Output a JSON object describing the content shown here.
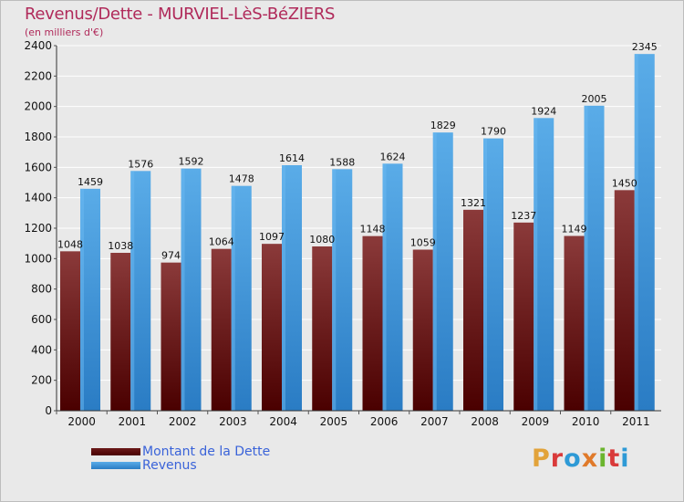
{
  "header": {
    "title": "Revenus/Dette - MURVIEL-LèS-BéZIERS",
    "subtitle": "(en milliers d'€)"
  },
  "legend": {
    "debt_label": "Montant de la Dette",
    "revenue_label": "Revenus"
  },
  "logo": {
    "text": "Proxiti",
    "letter_colors": [
      "#e2a33a",
      "#d93a3a",
      "#2e9ad6",
      "#e07a2a",
      "#6bb52e",
      "#d93a3a",
      "#2e9ad6"
    ]
  },
  "colors": {
    "debt_top": "#8b3a3a",
    "debt_bottom": "#4a0000",
    "revenue_top": "#5aace8",
    "revenue_bottom": "#2a7cc4",
    "title": "#b02a5a",
    "legend_text": "#3a63d9"
  },
  "chart_data": {
    "type": "bar",
    "categories": [
      "2000",
      "2001",
      "2002",
      "2003",
      "2004",
      "2005",
      "2006",
      "2007",
      "2008",
      "2009",
      "2010",
      "2011"
    ],
    "series": [
      {
        "name": "Montant de la Dette",
        "values": [
          1048,
          1038,
          974,
          1064,
          1097,
          1080,
          1148,
          1059,
          1321,
          1237,
          1149,
          1450
        ]
      },
      {
        "name": "Revenus",
        "values": [
          1459,
          1576,
          1592,
          1478,
          1614,
          1588,
          1624,
          1829,
          1790,
          1924,
          2005,
          2345
        ]
      }
    ],
    "data_labels": [
      [
        "1048",
        "1038",
        "974",
        "1064",
        "1097",
        "1080",
        "1148",
        "1059",
        "1321",
        "1237",
        "1149",
        "1450"
      ],
      [
        "1459",
        "1576",
        "1592",
        "1478",
        "1614",
        "1588",
        "1624",
        "1829",
        "1790",
        "1924",
        "2005",
        "2345"
      ]
    ],
    "yticks": [
      0,
      200,
      400,
      600,
      800,
      1000,
      1200,
      1400,
      1600,
      1800,
      2000,
      2200,
      2400
    ],
    "ylim": [
      0,
      2400
    ],
    "grid": true,
    "legend_position": "bottom-left"
  }
}
